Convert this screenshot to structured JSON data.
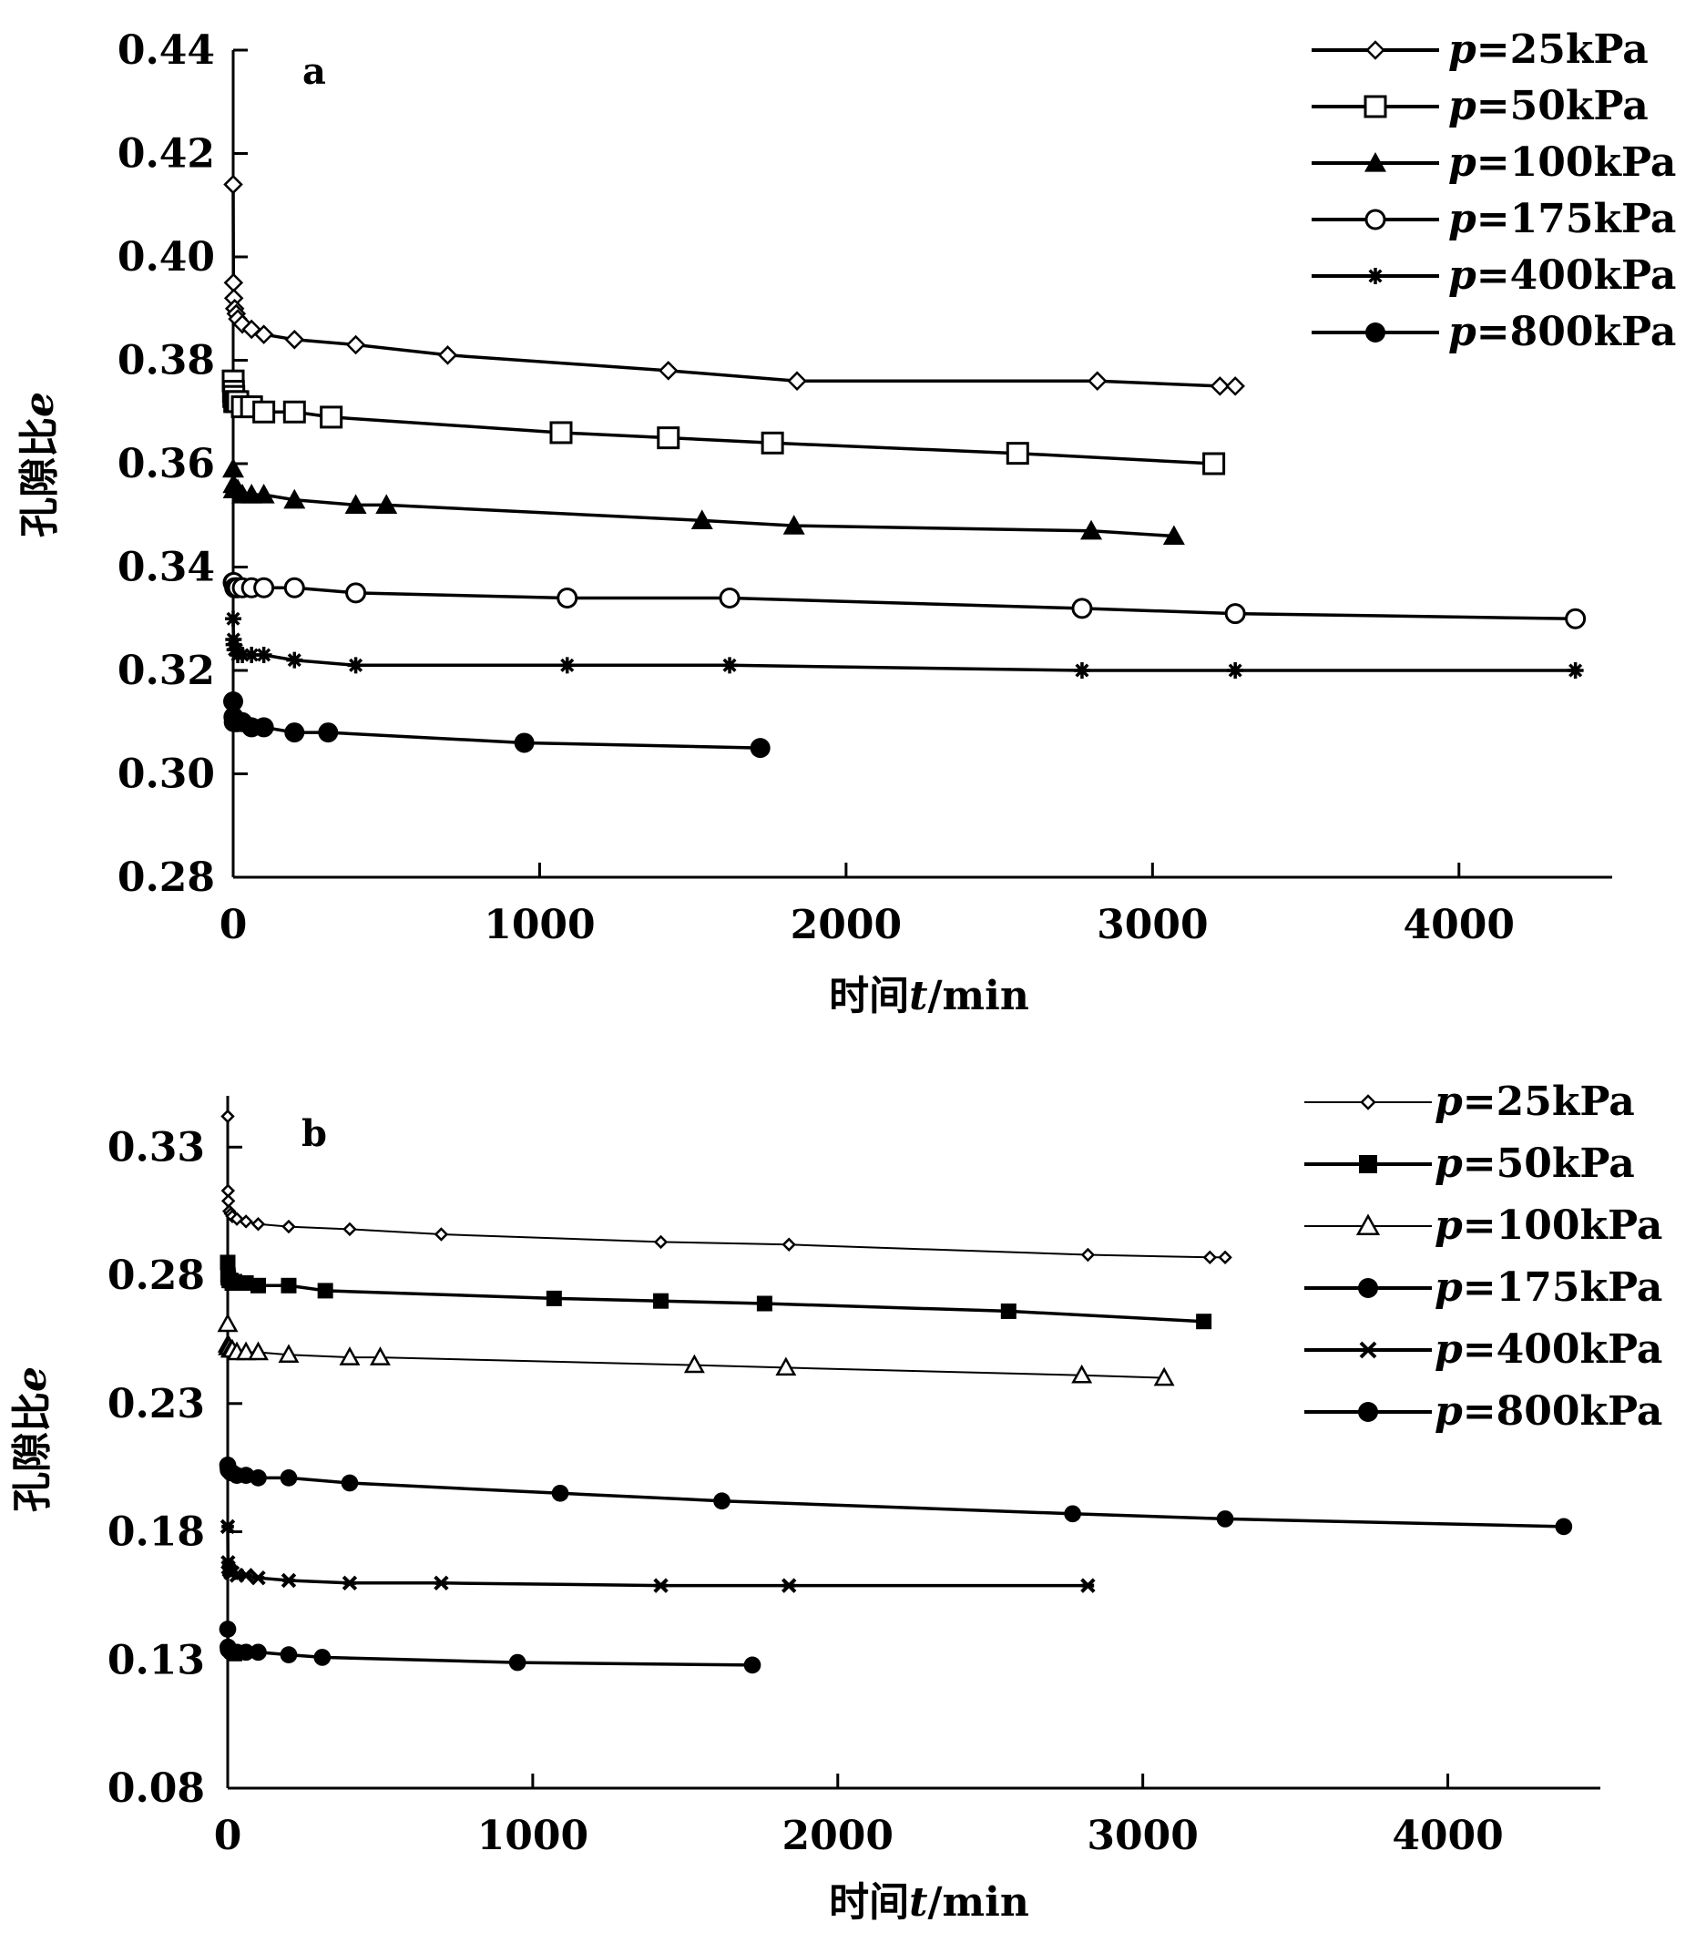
{
  "chart_data": [
    {
      "type": "line",
      "panel_label": "a",
      "xlabel_prefix": "时间",
      "xlabel_var": "t",
      "xlabel_unit": "/min",
      "ylabel_prefix": "孔隙比",
      "ylabel_var": "e",
      "xlim": [
        0,
        4500
      ],
      "ylim": [
        0.28,
        0.44
      ],
      "xticks": [
        0,
        1000,
        2000,
        3000,
        4000
      ],
      "xtick_labels": [
        "0",
        "1000",
        "2000",
        "3000",
        "4000"
      ],
      "yticks": [
        0.28,
        0.3,
        0.32,
        0.34,
        0.36,
        0.38,
        0.4,
        0.42,
        0.44
      ],
      "ytick_labels": [
        "0.28",
        "0.30",
        "0.32",
        "0.34",
        "0.36",
        "0.38",
        "0.40",
        "0.42",
        "0.44"
      ],
      "legend_position": "top-right",
      "series": [
        {
          "name_var": "p",
          "name_rest": "=25kPa",
          "marker": "diamond-open",
          "color": "#000000",
          "x": [
            0,
            1,
            2,
            5,
            10,
            15,
            30,
            60,
            100,
            200,
            400,
            700,
            1420,
            1840,
            2820,
            3220,
            3270
          ],
          "y": [
            0.414,
            0.395,
            0.392,
            0.39,
            0.389,
            0.388,
            0.387,
            0.386,
            0.385,
            0.384,
            0.383,
            0.381,
            0.378,
            0.376,
            0.376,
            0.375,
            0.375
          ]
        },
        {
          "name_var": "p",
          "name_rest": "=50kPa",
          "marker": "square-open",
          "color": "#000000",
          "x": [
            0,
            1,
            2,
            5,
            10,
            15,
            30,
            60,
            100,
            200,
            320,
            1070,
            1420,
            1760,
            2560,
            3200
          ],
          "y": [
            0.376,
            0.374,
            0.373,
            0.372,
            0.372,
            0.372,
            0.371,
            0.371,
            0.37,
            0.37,
            0.369,
            0.366,
            0.365,
            0.364,
            0.362,
            0.36
          ]
        },
        {
          "name_var": "p",
          "name_rest": "=100kPa",
          "marker": "triangle-filled",
          "color": "#000000",
          "x": [
            0,
            1,
            2,
            5,
            10,
            15,
            30,
            60,
            100,
            200,
            400,
            500,
            1530,
            1830,
            2800,
            3070
          ],
          "y": [
            0.359,
            0.356,
            0.355,
            0.355,
            0.355,
            0.355,
            0.354,
            0.354,
            0.354,
            0.353,
            0.352,
            0.352,
            0.349,
            0.348,
            0.347,
            0.346
          ]
        },
        {
          "name_var": "p",
          "name_rest": "=175kPa",
          "marker": "circle-open",
          "color": "#000000",
          "x": [
            0,
            1,
            2,
            5,
            10,
            15,
            30,
            60,
            100,
            200,
            400,
            1090,
            1620,
            2770,
            3270,
            4380
          ],
          "y": [
            0.337,
            0.337,
            0.337,
            0.336,
            0.336,
            0.336,
            0.336,
            0.336,
            0.336,
            0.336,
            0.335,
            0.334,
            0.334,
            0.332,
            0.331,
            0.33
          ]
        },
        {
          "name_var": "p",
          "name_rest": "=400kPa",
          "marker": "asterisk",
          "color": "#000000",
          "x": [
            0,
            1,
            2,
            5,
            10,
            15,
            30,
            60,
            100,
            200,
            400,
            1090,
            1620,
            2770,
            3270,
            4380
          ],
          "y": [
            0.33,
            0.326,
            0.325,
            0.324,
            0.324,
            0.323,
            0.323,
            0.323,
            0.323,
            0.322,
            0.321,
            0.321,
            0.321,
            0.32,
            0.32,
            0.32
          ]
        },
        {
          "name_var": "p",
          "name_rest": "=800kPa",
          "marker": "circle-filled",
          "color": "#000000",
          "x": [
            0,
            1,
            2,
            5,
            10,
            15,
            30,
            60,
            100,
            200,
            310,
            950,
            1720
          ],
          "y": [
            0.314,
            0.311,
            0.31,
            0.31,
            0.31,
            0.31,
            0.31,
            0.309,
            0.309,
            0.308,
            0.308,
            0.306,
            0.305
          ]
        }
      ]
    },
    {
      "type": "line",
      "panel_label": "b",
      "xlabel_prefix": "时间",
      "xlabel_var": "t",
      "xlabel_unit": "/min",
      "ylabel_prefix": "孔隙比",
      "ylabel_var": "e",
      "xlim": [
        0,
        4500
      ],
      "ylim": [
        0.08,
        0.35
      ],
      "xticks": [
        0,
        1000,
        2000,
        3000,
        4000
      ],
      "xtick_labels": [
        "0",
        "1000",
        "2000",
        "3000",
        "4000"
      ],
      "yticks": [
        0.08,
        0.13,
        0.18,
        0.23,
        0.28,
        0.33
      ],
      "ytick_labels": [
        "0.08",
        "0.13",
        "0.18",
        "0.23",
        "0.28",
        "0.33"
      ],
      "legend_position": "top-right",
      "series": [
        {
          "name_var": "p",
          "name_rest": "=25kPa",
          "marker": "diamond-open-small",
          "color": "#000000",
          "x": [
            0,
            1,
            2,
            5,
            10,
            15,
            30,
            60,
            100,
            200,
            400,
            700,
            1420,
            1840,
            2820,
            3220,
            3270
          ],
          "y": [
            0.342,
            0.313,
            0.309,
            0.305,
            0.304,
            0.303,
            0.302,
            0.301,
            0.3,
            0.299,
            0.298,
            0.296,
            0.293,
            0.292,
            0.288,
            0.287,
            0.287
          ]
        },
        {
          "name_var": "p",
          "name_rest": "=50kPa",
          "marker": "square-filled",
          "color": "#000000",
          "x": [
            0,
            1,
            2,
            5,
            10,
            15,
            30,
            60,
            100,
            200,
            320,
            1070,
            1420,
            1760,
            2560,
            3200
          ],
          "y": [
            0.285,
            0.28,
            0.279,
            0.278,
            0.278,
            0.277,
            0.277,
            0.277,
            0.276,
            0.276,
            0.274,
            0.271,
            0.27,
            0.269,
            0.266,
            0.262
          ]
        },
        {
          "name_var": "p",
          "name_rest": "=100kPa",
          "marker": "triangle-open",
          "color": "#000000",
          "x": [
            0,
            1,
            2,
            5,
            10,
            15,
            30,
            60,
            100,
            200,
            400,
            500,
            1530,
            1830,
            2800,
            3070
          ],
          "y": [
            0.261,
            0.253,
            0.252,
            0.252,
            0.251,
            0.251,
            0.25,
            0.25,
            0.25,
            0.249,
            0.248,
            0.248,
            0.245,
            0.244,
            0.241,
            0.24
          ]
        },
        {
          "name_var": "p",
          "name_rest": "=175kPa",
          "marker": "circle-filled",
          "color": "#000000",
          "x": [
            0,
            1,
            2,
            5,
            10,
            15,
            30,
            60,
            100,
            200,
            400,
            1090,
            1620,
            2770,
            3270,
            4380
          ],
          "y": [
            0.206,
            0.205,
            0.204,
            0.204,
            0.203,
            0.203,
            0.202,
            0.202,
            0.201,
            0.201,
            0.199,
            0.195,
            0.192,
            0.187,
            0.185,
            0.182
          ]
        },
        {
          "name_var": "p",
          "name_rest": "=400kPa",
          "marker": "square-asterisk",
          "color": "#000000",
          "x": [
            0,
            1,
            2,
            5,
            10,
            15,
            30,
            60,
            100,
            200,
            400,
            700,
            1420,
            1840,
            2820
          ],
          "y": [
            0.182,
            0.168,
            0.166,
            0.165,
            0.164,
            0.164,
            0.163,
            0.163,
            0.162,
            0.161,
            0.16,
            0.16,
            0.159,
            0.159,
            0.159
          ]
        },
        {
          "name_var": "p",
          "name_rest": "=800kPa",
          "marker": "circle-filled",
          "color": "#000000",
          "x": [
            0,
            1,
            2,
            5,
            10,
            15,
            30,
            60,
            100,
            200,
            310,
            950,
            1720
          ],
          "y": [
            0.142,
            0.135,
            0.134,
            0.134,
            0.133,
            0.133,
            0.133,
            0.133,
            0.133,
            0.132,
            0.131,
            0.129,
            0.128
          ]
        }
      ]
    }
  ]
}
